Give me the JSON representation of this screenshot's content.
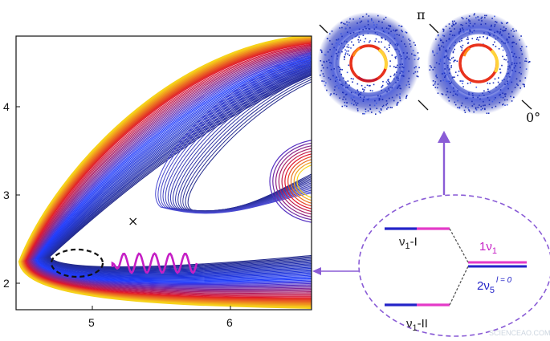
{
  "contour_plot": {
    "x_ticks": [
      "5",
      "6"
    ],
    "y_ticks": [
      "2",
      "3",
      "4"
    ],
    "saddle_marker": "×"
  },
  "images": {
    "label_pi": "π",
    "label_zero": "0°"
  },
  "levels": {
    "left_upper": {
      "nu": "ν",
      "sub": "1",
      "rest": "-I"
    },
    "left_lower": {
      "nu": "ν",
      "sub": "1",
      "rest": "-II"
    },
    "right_upper": {
      "coef": "1",
      "nu": "ν",
      "sub": "1"
    },
    "right_lower": {
      "coef": "2",
      "nu": "ν",
      "sub": "5",
      "sup": "l = 0"
    }
  },
  "colors": {
    "contour_dark": "#232a8c",
    "contour_blue": "#1f3cff",
    "contour_red": "#e0142a",
    "contour_yellow": "#f6d21a",
    "wave_magenta": "#c51fc5",
    "arrow_purple": "#8a5cd6",
    "level_blue": "#2323c8",
    "level_pink": "#e43ac8"
  },
  "watermark": "SCIENCEAO.COM"
}
